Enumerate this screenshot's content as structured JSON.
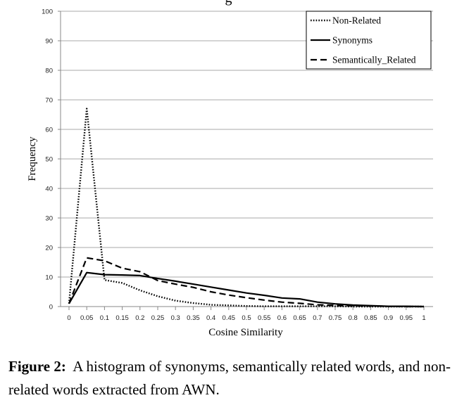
{
  "chart_data": {
    "type": "line",
    "title": "",
    "xlabel": "Cosine Similarity",
    "ylabel": "Frequency",
    "x": [
      0,
      0.05,
      0.1,
      0.15,
      0.2,
      0.25,
      0.3,
      0.35,
      0.4,
      0.45,
      0.5,
      0.55,
      0.6,
      0.65,
      0.7,
      0.75,
      0.8,
      0.85,
      0.9,
      0.95,
      1
    ],
    "x_tick_labels": [
      "0",
      "0.05",
      "0.1",
      "0.15",
      "0.2",
      "0.25",
      "0.3",
      "0.35",
      "0.4",
      "0.45",
      "0.5",
      "0.55",
      "0.6",
      "0.65",
      "0.7",
      "0.75",
      "0.8",
      "0.85",
      "0.9",
      "0.95",
      "1"
    ],
    "y_ticks": [
      "0",
      "10",
      "20",
      "30",
      "40",
      "50",
      "60",
      "70",
      "80",
      "90",
      "100"
    ],
    "ylim": [
      0,
      100
    ],
    "grid": "horizontal",
    "legend_position": "top-right",
    "series": [
      {
        "name": "Non-Related",
        "style": "dotted",
        "color": "#000000",
        "values": [
          1.0,
          67.0,
          9.0,
          8.0,
          5.5,
          3.5,
          2.0,
          1.2,
          0.6,
          0.4,
          0.2,
          0.1,
          0.1,
          0.1,
          0.1,
          0.1,
          0.0,
          0.0,
          0.0,
          0.0,
          0.0
        ]
      },
      {
        "name": "Synonyms",
        "style": "solid",
        "color": "#000000",
        "values": [
          1.0,
          11.5,
          10.8,
          10.7,
          10.5,
          9.5,
          8.6,
          7.6,
          6.6,
          5.6,
          4.6,
          3.8,
          2.9,
          2.6,
          1.5,
          0.9,
          0.5,
          0.3,
          0.1,
          0.1,
          0.0
        ]
      },
      {
        "name": "Semantically_Related",
        "style": "dashed",
        "color": "#000000",
        "values": [
          1.0,
          16.5,
          15.5,
          13.0,
          11.8,
          8.8,
          7.6,
          6.5,
          5.0,
          3.9,
          3.0,
          2.2,
          1.5,
          1.1,
          0.6,
          0.4,
          0.3,
          0.2,
          0.1,
          0.0,
          0.0
        ]
      }
    ]
  },
  "caption": {
    "label": "Figure 2:",
    "text": "A histogram of synonyms, semantically related words, and non-related words extracted from AWN."
  }
}
